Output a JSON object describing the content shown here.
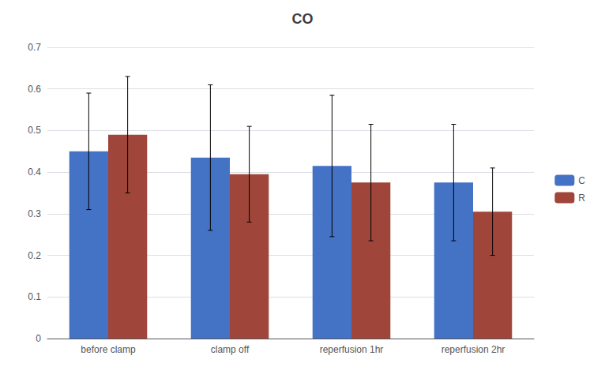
{
  "chart_data": {
    "type": "bar",
    "title": "CO",
    "categories": [
      "before clamp",
      "clamp off",
      "reperfusion 1hr",
      "reperfusion 2hr"
    ],
    "series": [
      {
        "name": "C",
        "color": "#4472C4",
        "values": [
          0.45,
          0.435,
          0.415,
          0.375
        ],
        "errors": [
          0.14,
          0.175,
          0.17,
          0.14
        ]
      },
      {
        "name": "R",
        "color": "#A0453A",
        "values": [
          0.49,
          0.395,
          0.375,
          0.305
        ],
        "errors": [
          0.14,
          0.115,
          0.14,
          0.105
        ]
      }
    ],
    "ylim": [
      0,
      0.7
    ],
    "yticks": [
      0,
      0.1,
      0.2,
      0.3,
      0.4,
      0.5,
      0.6,
      0.7
    ],
    "grid": true,
    "legend": "right"
  }
}
